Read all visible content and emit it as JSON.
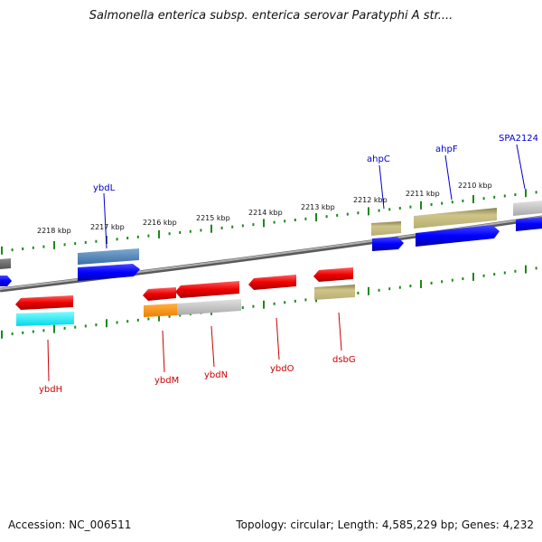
{
  "title": "Salmonella enterica subsp. enterica serovar Paratyphi A str....",
  "footer": {
    "accession": "Accession: NC_006511",
    "summary": "Topology: circular; Length: 4,585,229 bp; Genes: 4,232"
  },
  "colors": {
    "forward_label": "#0000cc",
    "reverse_label": "#cc0000",
    "tick": "#1a8a1a",
    "backbone": "#7a7a7a"
  },
  "ticks": [
    "2218 kbp",
    "2217 kbp",
    "2216 kbp",
    "2215 kbp",
    "2214 kbp",
    "2213 kbp",
    "2212 kbp",
    "2211 kbp",
    "2210 kbp"
  ],
  "genes": {
    "forward": [
      "ybdL",
      "ahpC",
      "ahpF",
      "SPA2124"
    ],
    "reverse": [
      "ybdH",
      "ybdM",
      "ybdN",
      "ybdO",
      "dsbG"
    ]
  }
}
